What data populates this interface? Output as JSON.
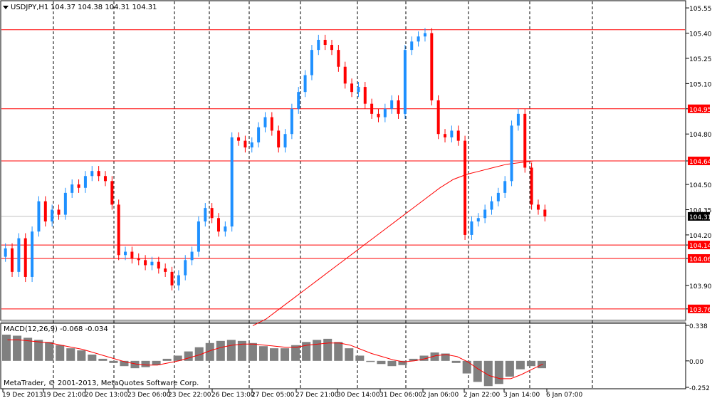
{
  "header": {
    "symbol_text": "USDJPY,H1",
    "ohlc_text": "104.37 104.38 104.31 104.31",
    "menu_arrow": "triangle-down-icon"
  },
  "indicator": {
    "label": "MACD(12,26,9) -0.068 -0.034"
  },
  "copyright": "MetaTrader, © 2001-2013, MetaQuotes Software Corp.",
  "colors": {
    "background": "#ffffff",
    "bull_candle": "#1e90ff",
    "bear_candle": "#ff0000",
    "level_line": "#ff0000",
    "moving_average": "#ff0000",
    "histogram": "#808080",
    "signal_line": "#ff0000",
    "separator_grid": "#000000",
    "price_label_bg": "#ff0000",
    "current_price_line": "#c0c0c0"
  },
  "chart_data": [
    {
      "type": "candlestick",
      "title": "USDJPY,H1",
      "ohlc_last": {
        "open": 104.37,
        "high": 104.38,
        "low": 104.31,
        "close": 104.31
      },
      "ylim": [
        103.7,
        105.58
      ],
      "price_ticks": [
        "105.55",
        "105.40",
        "105.25",
        "105.10",
        "104.95",
        "104.80",
        "104.64",
        "104.50",
        "104.35",
        "104.20",
        "104.14",
        "104.06",
        "103.90",
        "103.76"
      ],
      "time_ticks": [
        "19 Dec 2013",
        "19 Dec 21:00",
        "20 Dec 13:00",
        "23 Dec 06:00",
        "23 Dec 22:00",
        "26 Dec 13:00",
        "27 Dec 05:00",
        "27 Dec 21:00",
        "30 Dec 14:00",
        "31 Dec 06:00",
        "2 Jan 06:00",
        "2 Jan 22:00",
        "3 Jan 14:00",
        "6 Jan 07:00"
      ],
      "horizontal_levels": [
        105.42,
        104.95,
        104.64,
        104.14,
        104.06,
        103.76
      ],
      "current_price": 104.31,
      "price_series": [
        104.12,
        103.98,
        104.18,
        103.95,
        104.22,
        104.4,
        104.28,
        104.35,
        104.32,
        104.45,
        104.5,
        104.48,
        104.55,
        104.58,
        104.55,
        104.52,
        104.38,
        104.08,
        104.1,
        104.06,
        104.05,
        104.02,
        104.04,
        104.0,
        103.98,
        103.9,
        103.96,
        104.05,
        104.1,
        104.28,
        104.36,
        104.3,
        104.22,
        104.25,
        104.78,
        104.76,
        104.72,
        104.75,
        104.84,
        104.9,
        104.82,
        104.72,
        104.8,
        104.95,
        105.05,
        105.15,
        105.3,
        105.36,
        105.33,
        105.3,
        105.2,
        105.1,
        105.05,
        105.08,
        104.98,
        104.92,
        104.9,
        104.95,
        105.0,
        104.92,
        105.3,
        105.35,
        105.38,
        105.4,
        105.0,
        104.8,
        104.78,
        104.82,
        104.76,
        104.2,
        104.28,
        104.3,
        104.35,
        104.4,
        104.45,
        104.52,
        104.85,
        104.92,
        104.6,
        104.38,
        104.35,
        104.31
      ],
      "ma_series": [
        103.66,
        103.7,
        103.76,
        103.82,
        103.88,
        103.94,
        104.0,
        104.06,
        104.12,
        104.18,
        104.24,
        104.3,
        104.36,
        104.42,
        104.48,
        104.53,
        104.56,
        104.58,
        104.6,
        104.62,
        104.63,
        104.64,
        104.64
      ]
    },
    {
      "type": "bar",
      "title": "MACD(12,26,9) -0.068 -0.034",
      "ylim": [
        -0.252,
        0.338
      ],
      "ticks": [
        "0.338",
        "0.00",
        "-0.252"
      ],
      "histogram": [
        0.25,
        0.24,
        0.22,
        0.2,
        0.18,
        0.15,
        0.12,
        0.1,
        0.06,
        0.02,
        -0.02,
        -0.05,
        -0.07,
        -0.06,
        -0.04,
        0.02,
        0.05,
        0.09,
        0.13,
        0.17,
        0.19,
        0.2,
        0.19,
        0.17,
        0.14,
        0.12,
        0.12,
        0.15,
        0.18,
        0.2,
        0.21,
        0.18,
        0.12,
        0.05,
        -0.01,
        -0.03,
        -0.05,
        -0.04,
        0.02,
        0.05,
        0.08,
        0.07,
        -0.02,
        -0.12,
        -0.2,
        -0.24,
        -0.22,
        -0.15,
        -0.08,
        -0.05,
        -0.07
      ],
      "signal": [
        0.2,
        0.2,
        0.19,
        0.18,
        0.17,
        0.15,
        0.13,
        0.11,
        0.08,
        0.05,
        0.02,
        -0.01,
        -0.03,
        -0.04,
        -0.04,
        -0.02,
        0.0,
        0.03,
        0.06,
        0.1,
        0.13,
        0.15,
        0.16,
        0.16,
        0.15,
        0.14,
        0.13,
        0.13,
        0.15,
        0.16,
        0.17,
        0.17,
        0.15,
        0.11,
        0.07,
        0.04,
        0.01,
        -0.01,
        0.0,
        0.02,
        0.05,
        0.06,
        0.04,
        -0.01,
        -0.08,
        -0.14,
        -0.17,
        -0.17,
        -0.13,
        -0.08,
        -0.03
      ]
    }
  ]
}
